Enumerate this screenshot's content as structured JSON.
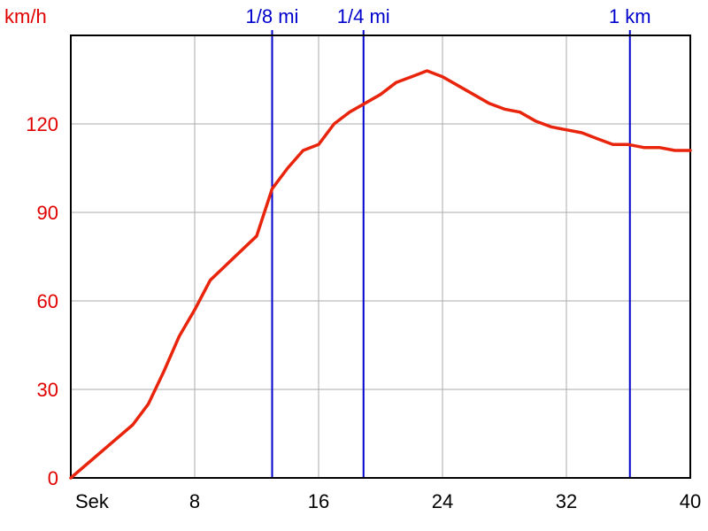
{
  "chart_data": {
    "type": "line",
    "ylabel": "km/h",
    "xlabel": "Sek",
    "xlim": [
      0,
      40
    ],
    "ylim": [
      0,
      150
    ],
    "x_ticks": [
      8,
      16,
      24,
      32,
      40
    ],
    "y_ticks": [
      0,
      30,
      60,
      90,
      120
    ],
    "grid": true,
    "colors": {
      "series": "#e8250c",
      "markers": "#0000cc",
      "grid": "#aaaaaa",
      "y_ticks": "#e00000"
    },
    "markers": [
      {
        "label": "1/8 mi",
        "x": 13.0
      },
      {
        "label": "1/4 mi",
        "x": 18.9
      },
      {
        "label": "1 km",
        "x": 36.1
      }
    ],
    "series": [
      {
        "x": [
          0,
          2,
          4,
          5,
          6,
          7,
          8,
          9,
          10,
          11,
          12,
          13,
          14,
          15,
          16,
          17,
          18,
          19,
          20,
          21,
          22,
          23,
          24,
          25,
          26,
          27,
          28,
          29,
          30,
          31,
          32,
          33,
          34,
          35,
          36,
          37,
          38,
          39,
          40
        ],
        "y": [
          0,
          9,
          18,
          25,
          36,
          48,
          57,
          67,
          72,
          77,
          82,
          98,
          105,
          111,
          113,
          120,
          124,
          127,
          130,
          134,
          136,
          138,
          136,
          133,
          130,
          127,
          125,
          124,
          121,
          119,
          118,
          117,
          115,
          113,
          113,
          112,
          112,
          111,
          111
        ]
      }
    ]
  }
}
